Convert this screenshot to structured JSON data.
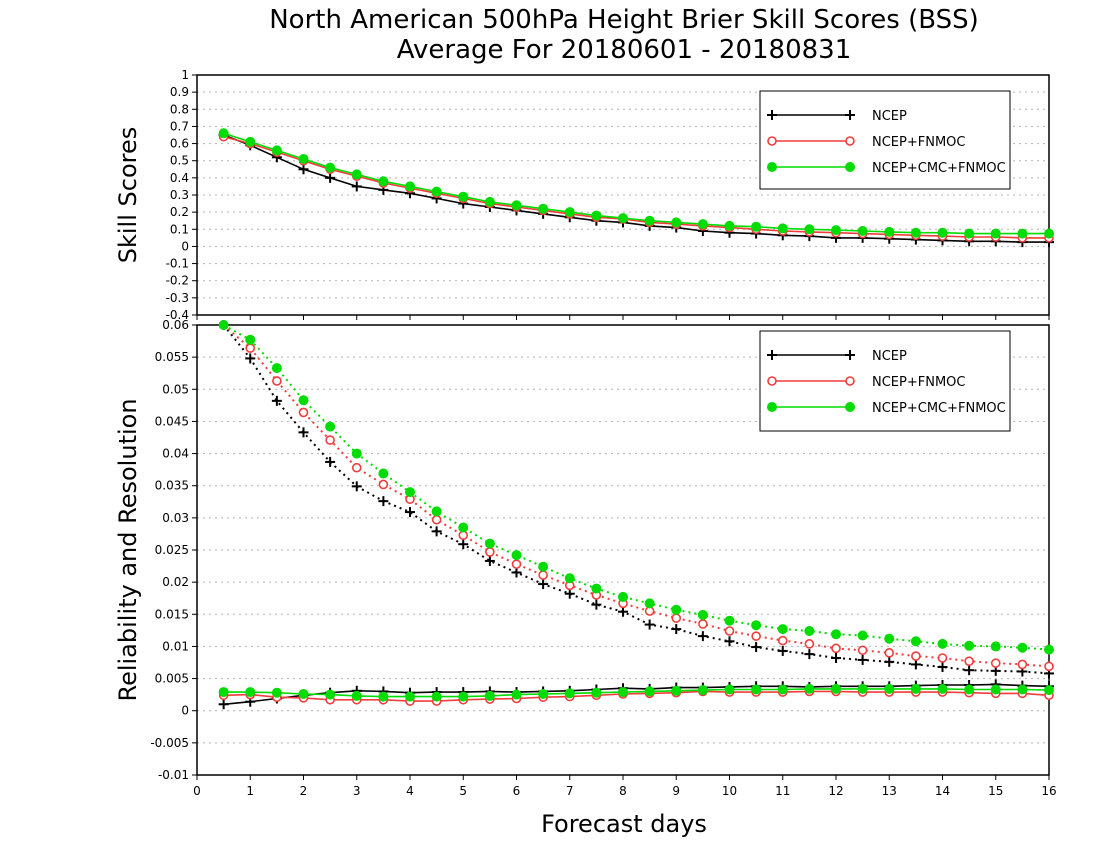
{
  "title_line1": "North American 500hPa Height Brier Skill Scores (BSS)",
  "title_line2": "Average For 20180601 - 20180831",
  "xlabel": "Forecast days",
  "colors": {
    "NCEP": "#000000",
    "NCEP+FNMOC": "#f03c3c",
    "NCEP+CMC+FNMOC": "#00dc00",
    "grid": "#b4b4b4"
  },
  "chart_data": [
    {
      "type": "line",
      "ylabel": "Skill Scores",
      "xlim": [
        0,
        16
      ],
      "ylim": [
        -0.4,
        1
      ],
      "xticks": [
        0,
        1,
        2,
        3,
        4,
        5,
        6,
        7,
        8,
        9,
        10,
        11,
        12,
        13,
        14,
        15,
        16
      ],
      "yticks": [
        -0.4,
        -0.3,
        -0.2,
        -0.1,
        0,
        0.1,
        0.2,
        0.3,
        0.4,
        0.5,
        0.6,
        0.7,
        0.8,
        0.9,
        1
      ],
      "ytick_labels": [
        "-0.4",
        "-0.3",
        "-0.2",
        "-0.1",
        "0",
        "0.1",
        "0.2",
        "0.3",
        "0.4",
        "0.5",
        "0.6",
        "0.7",
        "0.8",
        "0.9",
        "1"
      ],
      "grid": true,
      "legend_position": "top-right",
      "x": [
        0.5,
        1,
        1.5,
        2,
        2.5,
        3,
        3.5,
        4,
        4.5,
        5,
        5.5,
        6,
        6.5,
        7,
        7.5,
        8,
        8.5,
        9,
        9.5,
        10,
        10.5,
        11,
        11.5,
        12,
        12.5,
        13,
        13.5,
        14,
        14.5,
        15,
        15.5,
        16
      ],
      "series": [
        {
          "name": "NCEP",
          "marker": "plus",
          "style": "solid",
          "values": [
            0.65,
            0.59,
            0.52,
            0.45,
            0.4,
            0.35,
            0.33,
            0.31,
            0.28,
            0.25,
            0.23,
            0.21,
            0.19,
            0.17,
            0.15,
            0.14,
            0.12,
            0.11,
            0.09,
            0.08,
            0.075,
            0.065,
            0.06,
            0.05,
            0.05,
            0.045,
            0.04,
            0.035,
            0.03,
            0.03,
            0.025,
            0.025
          ]
        },
        {
          "name": "NCEP+FNMOC",
          "marker": "open-circle",
          "style": "solid",
          "values": [
            0.64,
            0.6,
            0.55,
            0.5,
            0.45,
            0.41,
            0.37,
            0.34,
            0.31,
            0.28,
            0.25,
            0.23,
            0.21,
            0.19,
            0.17,
            0.16,
            0.14,
            0.13,
            0.12,
            0.11,
            0.1,
            0.09,
            0.085,
            0.08,
            0.075,
            0.07,
            0.065,
            0.06,
            0.055,
            0.055,
            0.05,
            0.05
          ]
        },
        {
          "name": "NCEP+CMC+FNMOC",
          "marker": "filled-circle",
          "style": "solid",
          "values": [
            0.66,
            0.61,
            0.56,
            0.51,
            0.46,
            0.42,
            0.38,
            0.35,
            0.32,
            0.29,
            0.26,
            0.24,
            0.22,
            0.2,
            0.18,
            0.165,
            0.15,
            0.14,
            0.13,
            0.12,
            0.115,
            0.105,
            0.1,
            0.095,
            0.09,
            0.085,
            0.08,
            0.08,
            0.075,
            0.075,
            0.075,
            0.075
          ]
        }
      ]
    },
    {
      "type": "line",
      "ylabel": "Reliability and Resolution",
      "xlim": [
        0,
        16
      ],
      "ylim": [
        -0.01,
        0.06
      ],
      "xticks": [
        0,
        1,
        2,
        3,
        4,
        5,
        6,
        7,
        8,
        9,
        10,
        11,
        12,
        13,
        14,
        15,
        16
      ],
      "yticks": [
        -0.01,
        -0.005,
        0,
        0.005,
        0.01,
        0.015,
        0.02,
        0.025,
        0.03,
        0.035,
        0.04,
        0.045,
        0.05,
        0.055,
        0.06
      ],
      "ytick_labels": [
        "-0.01",
        "-0.005",
        "0",
        "0.005",
        "0.01",
        "0.015",
        "0.02",
        "0.025",
        "0.03",
        "0.035",
        "0.04",
        "0.045",
        "0.05",
        "0.055",
        "0.06"
      ],
      "grid": true,
      "legend_position": "top-right",
      "x": [
        0.5,
        1,
        1.5,
        2,
        2.5,
        3,
        3.5,
        4,
        4.5,
        5,
        5.5,
        6,
        6.5,
        7,
        7.5,
        8,
        8.5,
        9,
        9.5,
        10,
        10.5,
        11,
        11.5,
        12,
        12.5,
        13,
        13.5,
        14,
        14.5,
        15,
        15.5,
        16
      ],
      "series": [
        {
          "name": "NCEP",
          "role": "resolution",
          "marker": "plus",
          "style": "dotted",
          "values": [
            0.06,
            0.0548,
            0.0482,
            0.0433,
            0.0387,
            0.0349,
            0.0326,
            0.0309,
            0.0279,
            0.0259,
            0.0233,
            0.0215,
            0.0197,
            0.0182,
            0.0165,
            0.0154,
            0.0134,
            0.0127,
            0.0116,
            0.0108,
            0.0099,
            0.0093,
            0.0088,
            0.0082,
            0.0079,
            0.0076,
            0.0072,
            0.0068,
            0.0063,
            0.0062,
            0.0061,
            0.0058
          ]
        },
        {
          "name": "NCEP+FNMOC",
          "role": "resolution",
          "marker": "open-circle",
          "style": "dotted",
          "values": [
            0.06,
            0.0564,
            0.0513,
            0.0464,
            0.0421,
            0.0378,
            0.0352,
            0.0329,
            0.0297,
            0.0273,
            0.0247,
            0.0228,
            0.0211,
            0.0195,
            0.018,
            0.0167,
            0.0155,
            0.0144,
            0.0135,
            0.0124,
            0.0116,
            0.0109,
            0.0104,
            0.0097,
            0.0094,
            0.009,
            0.0085,
            0.0082,
            0.0077,
            0.0074,
            0.0072,
            0.0069
          ]
        },
        {
          "name": "NCEP+CMC+FNMOC",
          "role": "resolution",
          "marker": "filled-circle",
          "style": "dotted",
          "values": [
            0.06,
            0.0577,
            0.0533,
            0.0483,
            0.0442,
            0.04,
            0.0369,
            0.034,
            0.031,
            0.0285,
            0.026,
            0.0242,
            0.0224,
            0.0206,
            0.019,
            0.0177,
            0.0167,
            0.0157,
            0.0149,
            0.014,
            0.0133,
            0.0127,
            0.0124,
            0.0119,
            0.0117,
            0.0112,
            0.0108,
            0.0104,
            0.0101,
            0.01,
            0.0098,
            0.0095
          ]
        },
        {
          "name": "NCEP",
          "role": "reliability",
          "marker": "plus",
          "style": "solid",
          "values": [
            0.001,
            0.0014,
            0.0019,
            0.0024,
            0.0028,
            0.0031,
            0.003,
            0.0028,
            0.0029,
            0.0029,
            0.003,
            0.0029,
            0.003,
            0.0031,
            0.0033,
            0.0035,
            0.0034,
            0.0036,
            0.0036,
            0.0037,
            0.0038,
            0.0038,
            0.0037,
            0.0038,
            0.0038,
            0.0038,
            0.0039,
            0.004,
            0.004,
            0.0041,
            0.0039,
            0.0038
          ]
        },
        {
          "name": "NCEP+FNMOC",
          "role": "reliability",
          "marker": "open-circle",
          "style": "solid",
          "values": [
            0.0024,
            0.0025,
            0.0021,
            0.002,
            0.0017,
            0.0017,
            0.0017,
            0.0015,
            0.0015,
            0.0017,
            0.0018,
            0.0019,
            0.0021,
            0.0022,
            0.0024,
            0.0026,
            0.0027,
            0.0028,
            0.003,
            0.0029,
            0.0029,
            0.0029,
            0.003,
            0.003,
            0.0029,
            0.0029,
            0.0029,
            0.0029,
            0.0028,
            0.0027,
            0.0027,
            0.0024
          ]
        },
        {
          "name": "NCEP+CMC+FNMOC",
          "role": "reliability",
          "marker": "filled-circle",
          "style": "solid",
          "values": [
            0.0029,
            0.0029,
            0.0028,
            0.0026,
            0.0025,
            0.0023,
            0.0022,
            0.0022,
            0.0022,
            0.0022,
            0.0023,
            0.0025,
            0.0026,
            0.0027,
            0.0028,
            0.0029,
            0.003,
            0.0031,
            0.0032,
            0.0033,
            0.0033,
            0.0033,
            0.0034,
            0.0034,
            0.0034,
            0.0034,
            0.0034,
            0.0034,
            0.0033,
            0.0033,
            0.0033,
            0.0032
          ]
        }
      ]
    }
  ]
}
